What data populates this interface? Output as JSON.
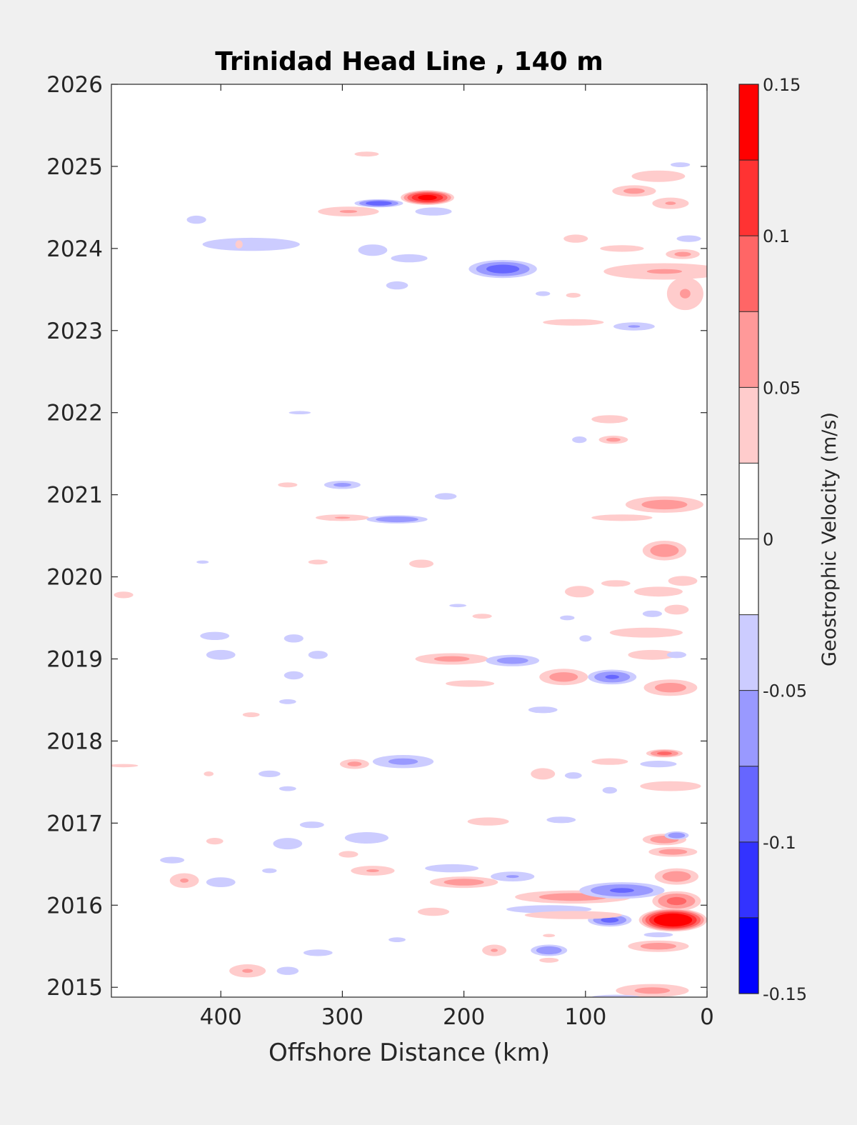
{
  "chart_data": {
    "type": "heatmap",
    "title": "Trinidad Head Line , 140 m",
    "xlabel": "Offshore Distance (km)",
    "ylabel": "",
    "xlim": [
      490,
      0
    ],
    "x_reversed": true,
    "ylim": [
      2014.88,
      2026
    ],
    "xticks": [
      400,
      300,
      200,
      100,
      0
    ],
    "yticks": [
      2015,
      2016,
      2017,
      2018,
      2019,
      2020,
      2021,
      2022,
      2023,
      2024,
      2025,
      2026
    ],
    "grid": false,
    "colorbar": {
      "label": "Geostrophic Velocity (m/s)",
      "limits": [
        -0.15,
        0.15
      ],
      "ticks": [
        "0.15",
        "0.1",
        "0.05",
        "0",
        "-0.05",
        "-0.1",
        "-0.15"
      ],
      "tick_values": [
        0.15,
        0.1,
        0.05,
        0,
        -0.05,
        -0.1,
        -0.15
      ],
      "levels": [
        0.125,
        0.1,
        0.075,
        0.05,
        0.025,
        0,
        -0.025,
        -0.05,
        -0.075,
        -0.1,
        -0.125
      ],
      "colors": [
        "#ff0000",
        "#ff3333",
        "#ff6666",
        "#ff9999",
        "#ffcccc",
        "#ffffff",
        "#ffffff",
        "#ccccff",
        "#9999ff",
        "#6666ff",
        "#3333ff",
        "#0000ff"
      ]
    },
    "features": [
      {
        "x": 230,
        "y": 2024.62,
        "dx": 22,
        "dy": 0.09,
        "v": 0.13
      },
      {
        "x": 270,
        "y": 2024.55,
        "dx": 20,
        "dy": 0.05,
        "v": -0.09
      },
      {
        "x": 295,
        "y": 2024.45,
        "dx": 25,
        "dy": 0.06,
        "v": 0.05
      },
      {
        "x": 225,
        "y": 2024.45,
        "dx": 15,
        "dy": 0.05,
        "v": -0.04
      },
      {
        "x": 280,
        "y": 2025.15,
        "dx": 10,
        "dy": 0.03,
        "v": 0.035
      },
      {
        "x": 375,
        "y": 2024.05,
        "dx": 40,
        "dy": 0.08,
        "v": -0.04
      },
      {
        "x": 420,
        "y": 2024.35,
        "dx": 8,
        "dy": 0.05,
        "v": -0.035
      },
      {
        "x": 385,
        "y": 2024.05,
        "dx": 3,
        "dy": 0.05,
        "v": 0.035
      },
      {
        "x": 275,
        "y": 2023.98,
        "dx": 12,
        "dy": 0.07,
        "v": -0.04
      },
      {
        "x": 245,
        "y": 2023.88,
        "dx": 15,
        "dy": 0.05,
        "v": -0.035
      },
      {
        "x": 168,
        "y": 2023.75,
        "dx": 28,
        "dy": 0.11,
        "v": -0.085
      },
      {
        "x": 255,
        "y": 2023.55,
        "dx": 9,
        "dy": 0.05,
        "v": -0.035
      },
      {
        "x": 135,
        "y": 2023.45,
        "dx": 6,
        "dy": 0.03,
        "v": -0.03
      },
      {
        "x": 110,
        "y": 2023.43,
        "dx": 6,
        "dy": 0.03,
        "v": 0.035
      },
      {
        "x": 110,
        "y": 2023.1,
        "dx": 25,
        "dy": 0.04,
        "v": 0.04
      },
      {
        "x": 60,
        "y": 2023.05,
        "dx": 17,
        "dy": 0.05,
        "v": -0.05
      },
      {
        "x": 60,
        "y": 2024.7,
        "dx": 18,
        "dy": 0.07,
        "v": 0.055
      },
      {
        "x": 30,
        "y": 2024.55,
        "dx": 15,
        "dy": 0.07,
        "v": 0.05
      },
      {
        "x": 40,
        "y": 2024.88,
        "dx": 22,
        "dy": 0.07,
        "v": 0.035
      },
      {
        "x": 22,
        "y": 2025.02,
        "dx": 8,
        "dy": 0.03,
        "v": -0.035
      },
      {
        "x": 15,
        "y": 2024.12,
        "dx": 10,
        "dy": 0.04,
        "v": -0.035
      },
      {
        "x": 20,
        "y": 2023.93,
        "dx": 14,
        "dy": 0.06,
        "v": 0.055
      },
      {
        "x": 35,
        "y": 2023.72,
        "dx": 50,
        "dy": 0.1,
        "v": 0.05
      },
      {
        "x": 18,
        "y": 2023.45,
        "dx": 15,
        "dy": 0.2,
        "v": 0.05
      },
      {
        "x": 108,
        "y": 2024.12,
        "dx": 10,
        "dy": 0.05,
        "v": 0.04
      },
      {
        "x": 70,
        "y": 2024.0,
        "dx": 18,
        "dy": 0.04,
        "v": 0.035
      },
      {
        "x": 80,
        "y": 2021.92,
        "dx": 15,
        "dy": 0.05,
        "v": 0.035
      },
      {
        "x": 77,
        "y": 2021.67,
        "dx": 12,
        "dy": 0.05,
        "v": 0.055
      },
      {
        "x": 105,
        "y": 2021.67,
        "dx": 6,
        "dy": 0.04,
        "v": -0.035
      },
      {
        "x": 335,
        "y": 2022.0,
        "dx": 9,
        "dy": 0.02,
        "v": -0.035
      },
      {
        "x": 300,
        "y": 2021.12,
        "dx": 15,
        "dy": 0.05,
        "v": -0.055
      },
      {
        "x": 345,
        "y": 2021.12,
        "dx": 8,
        "dy": 0.03,
        "v": 0.035
      },
      {
        "x": 300,
        "y": 2020.72,
        "dx": 22,
        "dy": 0.04,
        "v": 0.05
      },
      {
        "x": 255,
        "y": 2020.7,
        "dx": 25,
        "dy": 0.05,
        "v": -0.07
      },
      {
        "x": 215,
        "y": 2020.98,
        "dx": 9,
        "dy": 0.04,
        "v": -0.035
      },
      {
        "x": 35,
        "y": 2020.88,
        "dx": 32,
        "dy": 0.1,
        "v": 0.06
      },
      {
        "x": 70,
        "y": 2020.72,
        "dx": 25,
        "dy": 0.04,
        "v": 0.035
      },
      {
        "x": 35,
        "y": 2020.32,
        "dx": 18,
        "dy": 0.12,
        "v": 0.065
      },
      {
        "x": 235,
        "y": 2020.16,
        "dx": 10,
        "dy": 0.05,
        "v": 0.04
      },
      {
        "x": 320,
        "y": 2020.18,
        "dx": 8,
        "dy": 0.03,
        "v": 0.035
      },
      {
        "x": 415,
        "y": 2020.18,
        "dx": 5,
        "dy": 0.02,
        "v": -0.03
      },
      {
        "x": 400,
        "y": 2019.05,
        "dx": 12,
        "dy": 0.06,
        "v": -0.04
      },
      {
        "x": 320,
        "y": 2019.05,
        "dx": 8,
        "dy": 0.05,
        "v": -0.035
      },
      {
        "x": 210,
        "y": 2019.0,
        "dx": 30,
        "dy": 0.07,
        "v": 0.055
      },
      {
        "x": 160,
        "y": 2018.98,
        "dx": 22,
        "dy": 0.07,
        "v": -0.06
      },
      {
        "x": 118,
        "y": 2018.78,
        "dx": 20,
        "dy": 0.1,
        "v": 0.06
      },
      {
        "x": 78,
        "y": 2018.78,
        "dx": 20,
        "dy": 0.09,
        "v": -0.075
      },
      {
        "x": 45,
        "y": 2019.05,
        "dx": 20,
        "dy": 0.06,
        "v": 0.035
      },
      {
        "x": 25,
        "y": 2019.05,
        "dx": 8,
        "dy": 0.04,
        "v": -0.035
      },
      {
        "x": 30,
        "y": 2018.65,
        "dx": 22,
        "dy": 0.1,
        "v": 0.06
      },
      {
        "x": 195,
        "y": 2018.7,
        "dx": 20,
        "dy": 0.04,
        "v": 0.035
      },
      {
        "x": 340,
        "y": 2018.8,
        "dx": 8,
        "dy": 0.05,
        "v": -0.04
      },
      {
        "x": 135,
        "y": 2018.38,
        "dx": 12,
        "dy": 0.04,
        "v": -0.035
      },
      {
        "x": 375,
        "y": 2018.32,
        "dx": 7,
        "dy": 0.03,
        "v": 0.04
      },
      {
        "x": 345,
        "y": 2018.48,
        "dx": 7,
        "dy": 0.03,
        "v": -0.03
      },
      {
        "x": 290,
        "y": 2017.72,
        "dx": 12,
        "dy": 0.06,
        "v": 0.055
      },
      {
        "x": 250,
        "y": 2017.75,
        "dx": 25,
        "dy": 0.08,
        "v": -0.055
      },
      {
        "x": 35,
        "y": 2017.85,
        "dx": 15,
        "dy": 0.05,
        "v": 0.08
      },
      {
        "x": 40,
        "y": 2017.72,
        "dx": 15,
        "dy": 0.04,
        "v": -0.035
      },
      {
        "x": 30,
        "y": 2017.45,
        "dx": 25,
        "dy": 0.06,
        "v": 0.04
      },
      {
        "x": 80,
        "y": 2017.75,
        "dx": 15,
        "dy": 0.04,
        "v": 0.035
      },
      {
        "x": 135,
        "y": 2017.6,
        "dx": 10,
        "dy": 0.07,
        "v": 0.04
      },
      {
        "x": 110,
        "y": 2017.58,
        "dx": 7,
        "dy": 0.04,
        "v": -0.035
      },
      {
        "x": 80,
        "y": 2017.4,
        "dx": 6,
        "dy": 0.04,
        "v": -0.035
      },
      {
        "x": 360,
        "y": 2017.6,
        "dx": 9,
        "dy": 0.04,
        "v": -0.035
      },
      {
        "x": 345,
        "y": 2017.42,
        "dx": 7,
        "dy": 0.03,
        "v": -0.035
      },
      {
        "x": 410,
        "y": 2017.6,
        "dx": 4,
        "dy": 0.03,
        "v": 0.035
      },
      {
        "x": 180,
        "y": 2017.02,
        "dx": 17,
        "dy": 0.05,
        "v": 0.035
      },
      {
        "x": 120,
        "y": 2017.04,
        "dx": 12,
        "dy": 0.04,
        "v": -0.035
      },
      {
        "x": 325,
        "y": 2016.98,
        "dx": 10,
        "dy": 0.04,
        "v": -0.035
      },
      {
        "x": 345,
        "y": 2016.75,
        "dx": 12,
        "dy": 0.07,
        "v": -0.04
      },
      {
        "x": 280,
        "y": 2016.82,
        "dx": 18,
        "dy": 0.07,
        "v": -0.045
      },
      {
        "x": 405,
        "y": 2016.78,
        "dx": 7,
        "dy": 0.04,
        "v": 0.035
      },
      {
        "x": 295,
        "y": 2016.62,
        "dx": 8,
        "dy": 0.04,
        "v": 0.035
      },
      {
        "x": 440,
        "y": 2016.55,
        "dx": 10,
        "dy": 0.04,
        "v": -0.035
      },
      {
        "x": 430,
        "y": 2016.3,
        "dx": 12,
        "dy": 0.09,
        "v": 0.05
      },
      {
        "x": 400,
        "y": 2016.28,
        "dx": 12,
        "dy": 0.06,
        "v": -0.04
      },
      {
        "x": 360,
        "y": 2016.42,
        "dx": 6,
        "dy": 0.03,
        "v": -0.035
      },
      {
        "x": 275,
        "y": 2016.42,
        "dx": 18,
        "dy": 0.06,
        "v": 0.05
      },
      {
        "x": 210,
        "y": 2016.45,
        "dx": 22,
        "dy": 0.05,
        "v": -0.04
      },
      {
        "x": 200,
        "y": 2016.28,
        "dx": 28,
        "dy": 0.07,
        "v": 0.06
      },
      {
        "x": 160,
        "y": 2016.35,
        "dx": 18,
        "dy": 0.06,
        "v": -0.05
      },
      {
        "x": 110,
        "y": 2016.1,
        "dx": 48,
        "dy": 0.08,
        "v": 0.06
      },
      {
        "x": 70,
        "y": 2016.18,
        "dx": 35,
        "dy": 0.1,
        "v": -0.075
      },
      {
        "x": 35,
        "y": 2016.8,
        "dx": 18,
        "dy": 0.07,
        "v": 0.065
      },
      {
        "x": 25,
        "y": 2016.85,
        "dx": 10,
        "dy": 0.05,
        "v": -0.07
      },
      {
        "x": 28,
        "y": 2016.65,
        "dx": 20,
        "dy": 0.06,
        "v": 0.06
      },
      {
        "x": 25,
        "y": 2016.35,
        "dx": 18,
        "dy": 0.1,
        "v": 0.065
      },
      {
        "x": 25,
        "y": 2016.05,
        "dx": 20,
        "dy": 0.12,
        "v": 0.08
      },
      {
        "x": 28,
        "y": 2015.82,
        "dx": 28,
        "dy": 0.14,
        "v": 0.16
      },
      {
        "x": 80,
        "y": 2015.82,
        "dx": 18,
        "dy": 0.08,
        "v": -0.08
      },
      {
        "x": 130,
        "y": 2015.95,
        "dx": 35,
        "dy": 0.05,
        "v": -0.04
      },
      {
        "x": 110,
        "y": 2015.88,
        "dx": 40,
        "dy": 0.05,
        "v": 0.04
      },
      {
        "x": 40,
        "y": 2015.5,
        "dx": 25,
        "dy": 0.07,
        "v": 0.06
      },
      {
        "x": 40,
        "y": 2015.64,
        "dx": 12,
        "dy": 0.03,
        "v": -0.035
      },
      {
        "x": 130,
        "y": 2015.45,
        "dx": 15,
        "dy": 0.07,
        "v": -0.07
      },
      {
        "x": 175,
        "y": 2015.45,
        "dx": 10,
        "dy": 0.07,
        "v": 0.05
      },
      {
        "x": 130,
        "y": 2015.33,
        "dx": 8,
        "dy": 0.03,
        "v": 0.035
      },
      {
        "x": 130,
        "y": 2015.63,
        "dx": 5,
        "dy": 0.02,
        "v": 0.035
      },
      {
        "x": 225,
        "y": 2015.92,
        "dx": 13,
        "dy": 0.05,
        "v": 0.04
      },
      {
        "x": 320,
        "y": 2015.42,
        "dx": 12,
        "dy": 0.04,
        "v": -0.04
      },
      {
        "x": 378,
        "y": 2015.2,
        "dx": 15,
        "dy": 0.08,
        "v": 0.05
      },
      {
        "x": 345,
        "y": 2015.2,
        "dx": 9,
        "dy": 0.05,
        "v": -0.04
      },
      {
        "x": 255,
        "y": 2015.58,
        "dx": 7,
        "dy": 0.03,
        "v": -0.035
      },
      {
        "x": 45,
        "y": 2014.96,
        "dx": 30,
        "dy": 0.08,
        "v": 0.055
      },
      {
        "x": 75,
        "y": 2014.88,
        "dx": 20,
        "dy": 0.03,
        "v": -0.04
      },
      {
        "x": 480,
        "y": 2019.78,
        "dx": 8,
        "dy": 0.04,
        "v": 0.035
      },
      {
        "x": 480,
        "y": 2017.7,
        "dx": 12,
        "dy": 0.02,
        "v": 0.035
      },
      {
        "x": 105,
        "y": 2019.82,
        "dx": 12,
        "dy": 0.07,
        "v": 0.04
      },
      {
        "x": 75,
        "y": 2019.92,
        "dx": 12,
        "dy": 0.04,
        "v": 0.035
      },
      {
        "x": 40,
        "y": 2019.82,
        "dx": 20,
        "dy": 0.06,
        "v": 0.045
      },
      {
        "x": 25,
        "y": 2019.6,
        "dx": 10,
        "dy": 0.06,
        "v": 0.045
      },
      {
        "x": 45,
        "y": 2019.55,
        "dx": 8,
        "dy": 0.04,
        "v": -0.035
      },
      {
        "x": 50,
        "y": 2019.32,
        "dx": 30,
        "dy": 0.06,
        "v": 0.04
      },
      {
        "x": 20,
        "y": 2019.95,
        "dx": 12,
        "dy": 0.06,
        "v": 0.035
      },
      {
        "x": 115,
        "y": 2019.5,
        "dx": 6,
        "dy": 0.03,
        "v": -0.035
      },
      {
        "x": 100,
        "y": 2019.25,
        "dx": 5,
        "dy": 0.04,
        "v": -0.035
      },
      {
        "x": 185,
        "y": 2019.52,
        "dx": 8,
        "dy": 0.03,
        "v": 0.035
      },
      {
        "x": 205,
        "y": 2019.65,
        "dx": 7,
        "dy": 0.02,
        "v": -0.035
      },
      {
        "x": 405,
        "y": 2019.28,
        "dx": 12,
        "dy": 0.05,
        "v": -0.04
      },
      {
        "x": 340,
        "y": 2019.25,
        "dx": 8,
        "dy": 0.05,
        "v": -0.035
      }
    ]
  }
}
